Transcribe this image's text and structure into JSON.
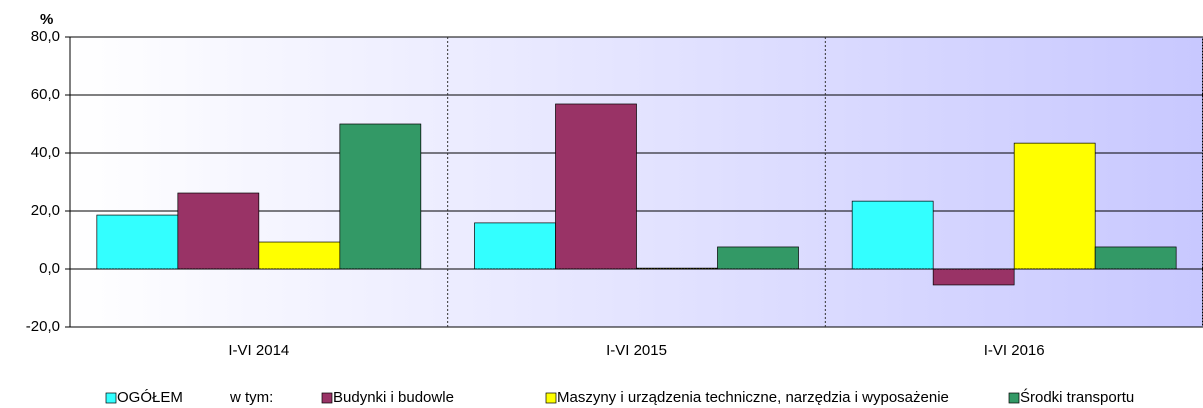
{
  "chart_data": {
    "type": "bar",
    "y_label": "%",
    "categories": [
      "I-VI 2014",
      "I-VI 2015",
      "I-VI 2016"
    ],
    "legend_note": "w tym:",
    "series": [
      {
        "name": "OGÓŁEM",
        "color": "#33ffff",
        "values": [
          18.6,
          15.9,
          23.4
        ]
      },
      {
        "name": "Budynki i budowle",
        "color": "#993366",
        "values": [
          26.2,
          56.9,
          -5.5
        ]
      },
      {
        "name": "Maszyny i urządzenia techniczne, narzędzia i wyposażenie",
        "color": "#ffff00",
        "values": [
          9.3,
          0.3,
          43.4
        ]
      },
      {
        "name": "Środki transportu",
        "color": "#339966",
        "values": [
          50.0,
          7.6,
          7.6
        ]
      }
    ],
    "ylim": [
      -20,
      80
    ],
    "yticks": [
      {
        "value": -20,
        "label": "-20,0"
      },
      {
        "value": 0,
        "label": "0,0"
      },
      {
        "value": 20,
        "label": "20,0"
      },
      {
        "value": 40,
        "label": "40,0"
      },
      {
        "value": 60,
        "label": "60,0"
      },
      {
        "value": 80,
        "label": "80,0"
      }
    ],
    "grid": true
  }
}
